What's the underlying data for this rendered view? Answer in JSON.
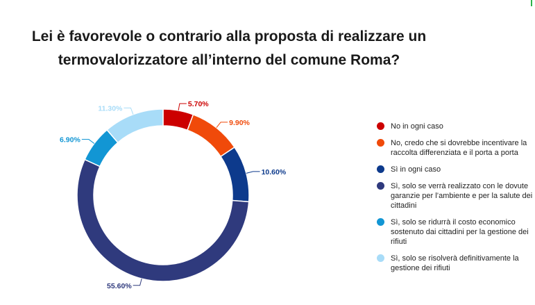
{
  "title": {
    "line1": "Lei è favorevole o contrario alla proposta di realizzare un",
    "line2": "termovalorizzatore all’interno del comune Roma?"
  },
  "chart_data": {
    "type": "pie",
    "variant": "donut",
    "title": "Lei è favorevole o contrario alla proposta di realizzare un termovalorizzatore all’interno del comune Roma?",
    "unit": "%",
    "legend_position": "right",
    "slices": [
      {
        "label": "No in ogni caso",
        "value": 5.7,
        "value_label": "5.70%",
        "color": "#cc0000"
      },
      {
        "label": "No, credo che si dovrebbe incentivare la raccolta differenziata e il porta a porta",
        "value": 9.9,
        "value_label": "9.90%",
        "color": "#f04a0a"
      },
      {
        "label": "Sì in ogni caso",
        "value": 10.6,
        "value_label": "10.60%",
        "color": "#0d3a8c"
      },
      {
        "label": "Sì, solo se verrà realizzato con le dovute garanzie per l’ambiente e per la salute dei cittadini",
        "value": 55.6,
        "value_label": "55.60%",
        "color": "#2f3a7d"
      },
      {
        "label": "Sì, solo se ridurrà il costo economico sostenuto dai cittadini per la gestione dei rifiuti",
        "value": 6.9,
        "value_label": "6.90%",
        "color": "#1296d4"
      },
      {
        "label": "Sì, solo se risolverà definitivamente la gestione dei rifiuti",
        "value": 11.3,
        "value_label": "11.30%",
        "color": "#a8dcf8"
      }
    ]
  }
}
